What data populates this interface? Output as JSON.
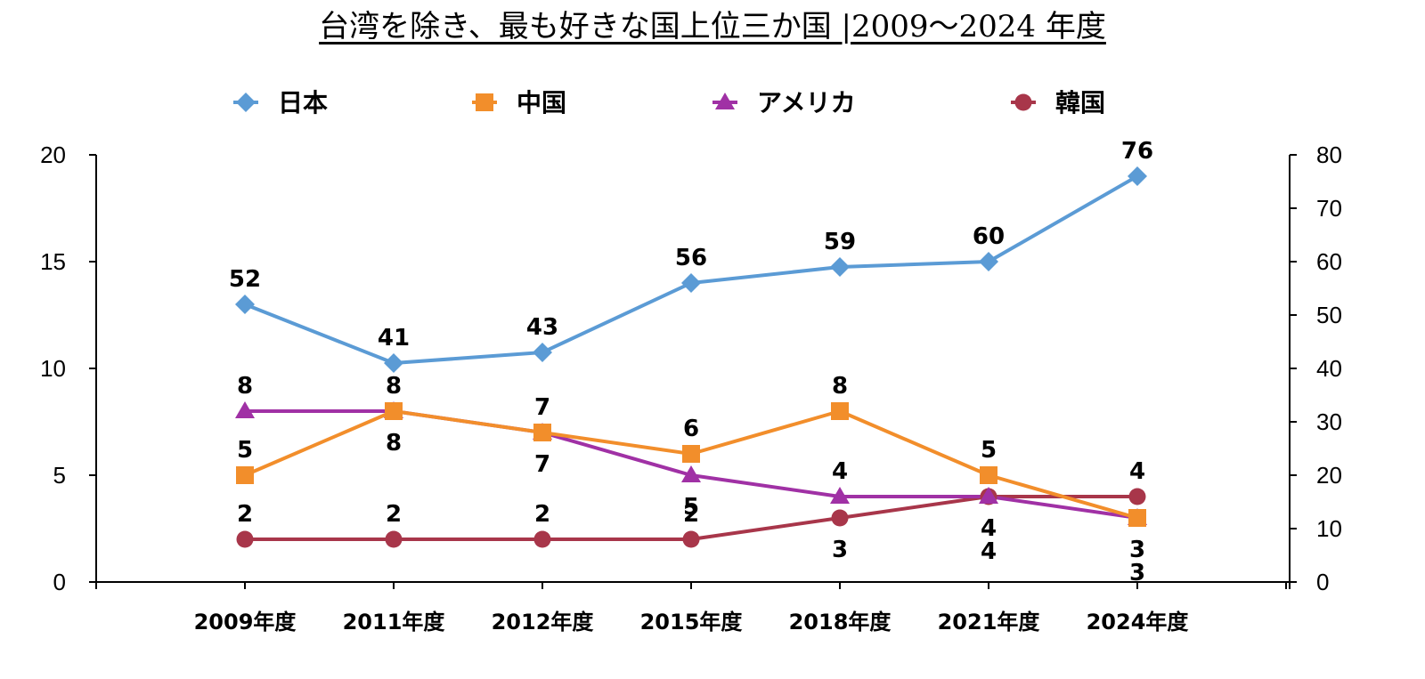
{
  "chart_data": {
    "type": "line",
    "title": "台湾を除き、最も好きな国上位三か国 |2009～2024 年度",
    "categories": [
      "2009年度",
      "2011年度",
      "2012年度",
      "2015年度",
      "2018年度",
      "2021年度",
      "2024年度"
    ],
    "y_left": {
      "range": [
        0,
        20
      ],
      "ticks": [
        "0",
        "5",
        "10",
        "15",
        "20"
      ]
    },
    "y_right": {
      "range": [
        0,
        80
      ],
      "ticks": [
        "0",
        "10",
        "20",
        "30",
        "40",
        "50",
        "60",
        "70",
        "80"
      ]
    },
    "grid": false,
    "legend_position": "top",
    "series": [
      {
        "name": "日本",
        "axis": "right",
        "color": "#5b9bd5",
        "marker": "diamond",
        "values": [
          52,
          41,
          43,
          56,
          59,
          60,
          76
        ],
        "labels": [
          "52",
          "41",
          "43",
          "56",
          "59",
          "60",
          "76"
        ],
        "label_pos": [
          "above",
          "above",
          "above",
          "above",
          "above",
          "above",
          "above"
        ]
      },
      {
        "name": "中国",
        "axis": "left",
        "color": "#f28e2b",
        "marker": "square",
        "values": [
          5,
          8,
          7,
          6,
          8,
          5,
          3
        ],
        "labels": [
          "5",
          "8",
          "7",
          "6",
          "8",
          "5",
          "3"
        ],
        "label_pos": [
          "above",
          "below",
          "above",
          "above",
          "above",
          "above",
          "below"
        ]
      },
      {
        "name": "アメリカ",
        "axis": "left",
        "color": "#a031a5",
        "marker": "triangle",
        "values": [
          8,
          8,
          7,
          5,
          4,
          4,
          3
        ],
        "labels": [
          "8",
          "8",
          "7",
          "5",
          "4",
          "4",
          "3"
        ],
        "label_pos": [
          "above",
          "above",
          "below",
          "below",
          "above",
          "below",
          "below2"
        ]
      },
      {
        "name": "韓国",
        "axis": "left",
        "color": "#a8364a",
        "marker": "circle",
        "values": [
          2,
          2,
          2,
          2,
          3,
          4,
          4
        ],
        "labels": [
          "2",
          "2",
          "2",
          "2",
          "3",
          "4",
          "4"
        ],
        "label_pos": [
          "above",
          "above",
          "above",
          "above",
          "below",
          "below2",
          "above"
        ]
      }
    ]
  }
}
